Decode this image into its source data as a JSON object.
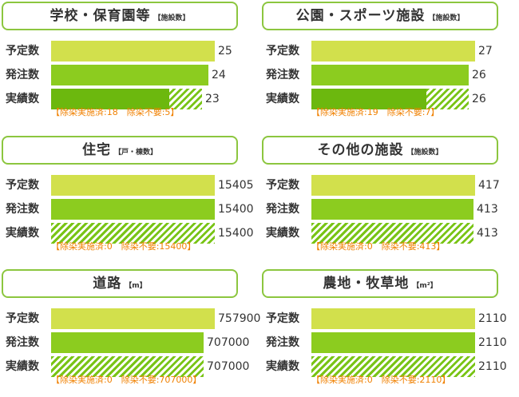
{
  "row_labels": [
    "予定数",
    "発注数",
    "実績数"
  ],
  "chart_data": [
    {
      "type": "bar",
      "title": "学校・保育園等",
      "unit": "【施設数】",
      "categories": [
        "予定数",
        "発注数",
        "実績数"
      ],
      "values": [
        25,
        24,
        23
      ],
      "labels": [
        "25",
        "24",
        "23"
      ],
      "decon_done": 18,
      "decon_not_needed": 5,
      "note": "【除染実施済:18　除染不要:5】"
    },
    {
      "type": "bar",
      "title": "公園・スポーツ施設",
      "unit": "【施設数】",
      "categories": [
        "予定数",
        "発注数",
        "実績数"
      ],
      "values": [
        27,
        26,
        26
      ],
      "labels": [
        "27",
        "26",
        "26"
      ],
      "decon_done": 19,
      "decon_not_needed": 7,
      "note": "【除染実施済:19　除染不要:7】"
    },
    {
      "type": "bar",
      "title": "住宅",
      "unit": "【戸・棟数】",
      "categories": [
        "予定数",
        "発注数",
        "実績数"
      ],
      "values": [
        15405,
        15400,
        15400
      ],
      "labels": [
        "15405",
        "15400",
        "15400"
      ],
      "decon_done": 0,
      "decon_not_needed": 15400,
      "note": "【除染実施済:0　除染不要:15400】"
    },
    {
      "type": "bar",
      "title": "その他の施設",
      "unit": "【施設数】",
      "categories": [
        "予定数",
        "発注数",
        "実績数"
      ],
      "values": [
        417,
        413,
        413
      ],
      "labels": [
        "417",
        "413",
        "413"
      ],
      "decon_done": 0,
      "decon_not_needed": 413,
      "note": "【除染実施済:0　除染不要:413】"
    },
    {
      "type": "bar",
      "title": "道路",
      "unit": "【m】",
      "categories": [
        "予定数",
        "発注数",
        "実績数"
      ],
      "values": [
        757900,
        707000,
        707000
      ],
      "labels": [
        "757900",
        "707000",
        "707000"
      ],
      "decon_done": 0,
      "decon_not_needed": 707000,
      "note": "【除染実施済:0　除染不要:707000】"
    },
    {
      "type": "bar",
      "title": "農地・牧草地",
      "unit": "【m²】",
      "categories": [
        "予定数",
        "発注数",
        "実績数"
      ],
      "values": [
        2110,
        2110,
        2110
      ],
      "labels": [
        "2110",
        "2110",
        "2110"
      ],
      "decon_done": 0,
      "decon_not_needed": 2110,
      "note": "【除染実施済:0　除染不要:2110】"
    }
  ],
  "colors": {
    "border": "#8cc63f",
    "plan_bar": "#d2e04c",
    "order_bar": "#8ccc1f",
    "actual_done": "#6cb80e",
    "actual_hatch": "#79c416",
    "note_text": "#f08000",
    "text": "#333333"
  }
}
